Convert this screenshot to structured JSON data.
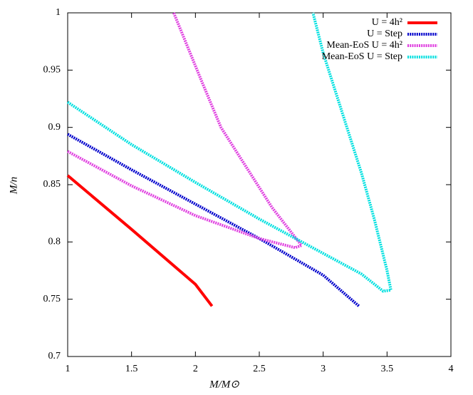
{
  "chart_data": {
    "type": "line",
    "x_label": "M/M⊙",
    "y_label": "M/n",
    "xlim": [
      1,
      4
    ],
    "xticks": [
      1,
      1.5,
      2,
      2.5,
      3,
      3.5,
      4
    ],
    "ylim": [
      0.7,
      1
    ],
    "yticks": [
      0.7,
      0.75,
      0.8,
      0.85,
      0.9,
      0.95,
      1
    ],
    "grid": false,
    "legend": "top-right",
    "series": [
      {
        "name": "U = 4h²",
        "color": "#ff0000",
        "style": "solid",
        "x": [
          1,
          1.5,
          2,
          2.13
        ],
        "y": [
          0.858,
          0.811,
          0.763,
          0.744
        ]
      },
      {
        "name": "U = Step",
        "color": "#0000cc",
        "style": "dotted",
        "x": [
          1,
          1.5,
          2,
          2.5,
          3,
          3.28
        ],
        "y": [
          0.894,
          0.863,
          0.833,
          0.803,
          0.771,
          0.744
        ]
      },
      {
        "name": "Mean-EoS U = 4h²",
        "color": "#e040e0",
        "style": "dotted",
        "x": [
          1,
          1.5,
          2,
          2.5,
          2.78,
          2.83,
          2.6,
          2.4,
          2.2,
          2.05,
          1.83
        ],
        "y": [
          0.879,
          0.849,
          0.823,
          0.803,
          0.795,
          0.797,
          0.83,
          0.865,
          0.9,
          0.94,
          1
        ]
      },
      {
        "name": "Mean-EoS U = Step",
        "color": "#00e0e0",
        "style": "dotted",
        "x": [
          1,
          1.5,
          2,
          2.5,
          3,
          3.3,
          3.47,
          3.53,
          3.5,
          3.4,
          3.3,
          3.2,
          3.1,
          3,
          2.92
        ],
        "y": [
          0.922,
          0.885,
          0.852,
          0.82,
          0.79,
          0.772,
          0.757,
          0.758,
          0.775,
          0.82,
          0.86,
          0.895,
          0.93,
          0.965,
          1
        ]
      }
    ]
  }
}
